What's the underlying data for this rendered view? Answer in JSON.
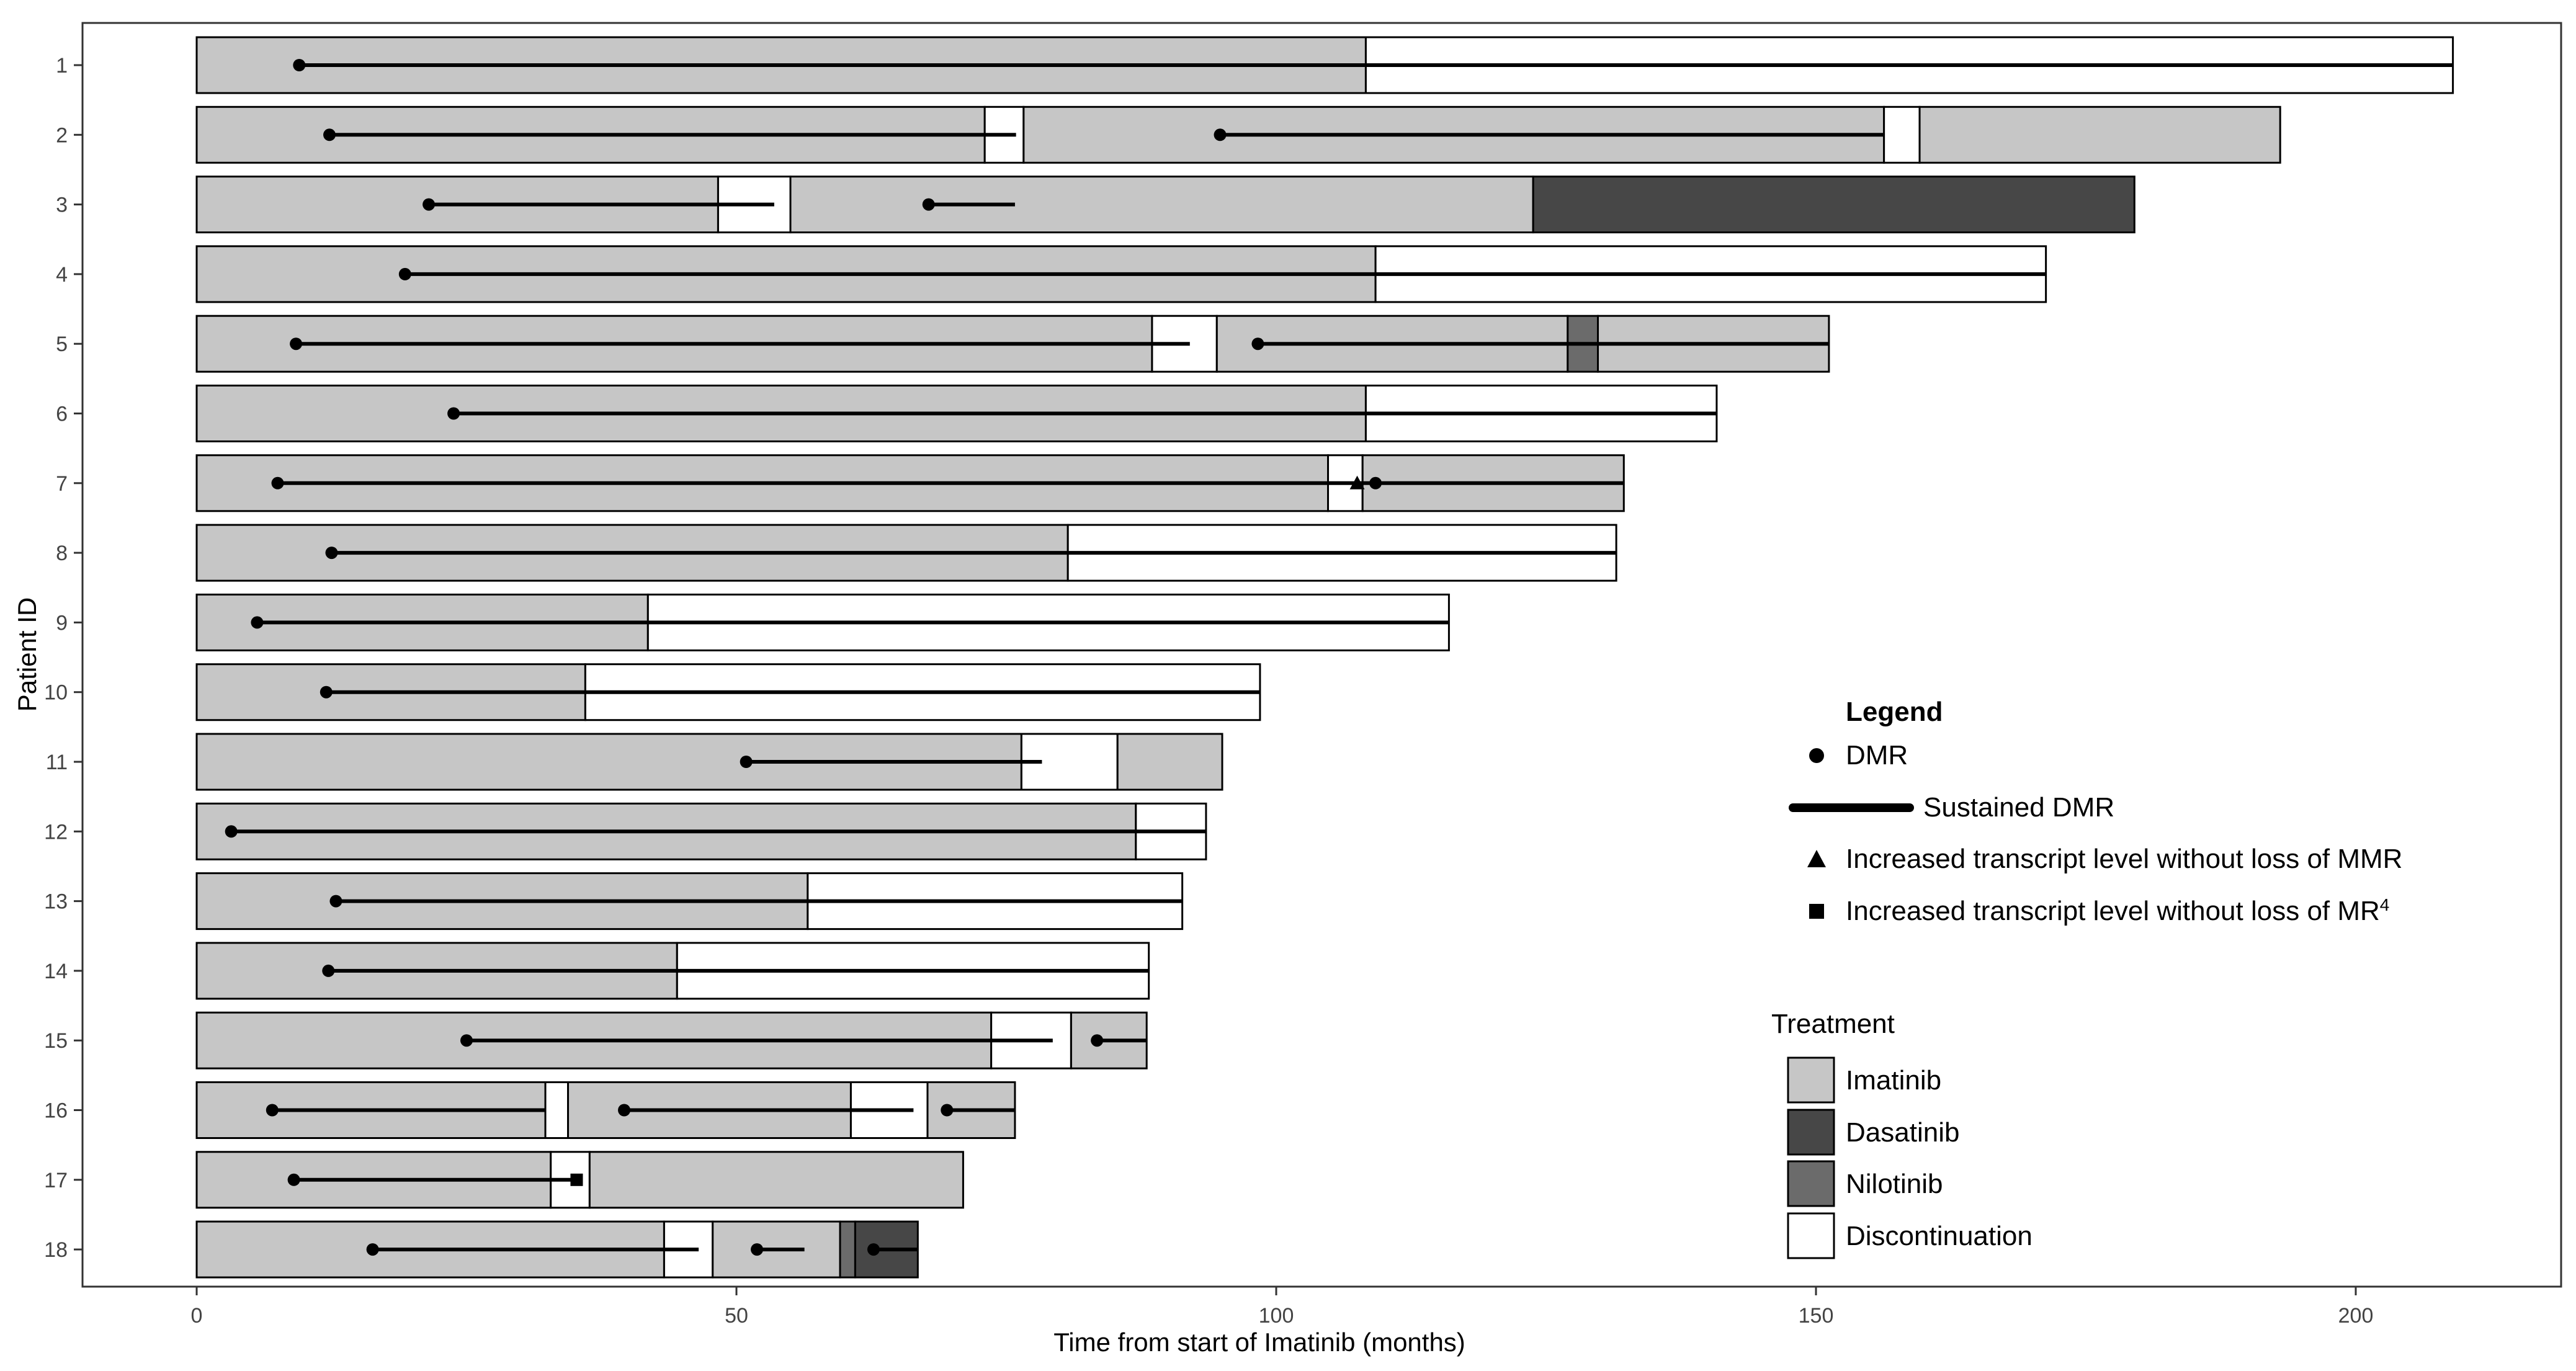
{
  "chart_data": {
    "type": "swimmer",
    "title": "",
    "xlabel": "Time from start of Imatinib (months)",
    "ylabel": "Patient ID",
    "xlim": [
      -10.5,
      218.5
    ],
    "xticks": [
      0,
      50,
      100,
      150,
      200
    ],
    "colors": {
      "Imatinib": "#c6c6c6",
      "Dasatinib": "#474747",
      "Nilotinib": "#6b6b6b",
      "Discontinuation": "#ffffff",
      "outline": "#000000",
      "text": "#000000",
      "tick_text": "#444444"
    },
    "patients": [
      {
        "id": "1",
        "segments": [
          [
            "Imatinib",
            0,
            108.3
          ],
          [
            "Discontinuation",
            108.3,
            209
          ]
        ],
        "dmr": [
          9.5
        ],
        "sustained": [
          [
            9.5,
            209
          ]
        ],
        "triangles": [],
        "squares": []
      },
      {
        "id": "2",
        "segments": [
          [
            "Imatinib",
            0,
            73
          ],
          [
            "Discontinuation",
            73,
            76.6
          ],
          [
            "Imatinib",
            76.6,
            156.3
          ],
          [
            "Discontinuation",
            156.3,
            159.6
          ],
          [
            "Imatinib",
            159.6,
            193
          ]
        ],
        "dmr": [
          12.3,
          94.8
        ],
        "sustained": [
          [
            12.3,
            75.9
          ],
          [
            94.8,
            156.3
          ]
        ],
        "triangles": [],
        "squares": []
      },
      {
        "id": "3",
        "segments": [
          [
            "Imatinib",
            0,
            48.3
          ],
          [
            "Discontinuation",
            48.3,
            55
          ],
          [
            "Imatinib",
            55,
            123.8
          ],
          [
            "Dasatinib",
            123.8,
            179.5
          ]
        ],
        "dmr": [
          21.5,
          67.8
        ],
        "sustained": [
          [
            21.5,
            53.5
          ],
          [
            67.8,
            75.8
          ]
        ],
        "triangles": [],
        "squares": []
      },
      {
        "id": "4",
        "segments": [
          [
            "Imatinib",
            0,
            109.2
          ],
          [
            "Discontinuation",
            109.2,
            171.3
          ]
        ],
        "dmr": [
          19.3
        ],
        "sustained": [
          [
            19.3,
            171.3
          ]
        ],
        "triangles": [],
        "squares": []
      },
      {
        "id": "5",
        "segments": [
          [
            "Imatinib",
            0,
            88.5
          ],
          [
            "Discontinuation",
            88.5,
            94.5
          ],
          [
            "Imatinib",
            94.5,
            127
          ],
          [
            "Nilotinib",
            127,
            129.8
          ],
          [
            "Imatinib",
            129.8,
            151.2
          ]
        ],
        "dmr": [
          9.2,
          98.3
        ],
        "sustained": [
          [
            9.2,
            92
          ],
          [
            98.3,
            151.2
          ]
        ],
        "triangles": [],
        "squares": []
      },
      {
        "id": "6",
        "segments": [
          [
            "Imatinib",
            0,
            108.3
          ],
          [
            "Discontinuation",
            108.3,
            140.8
          ]
        ],
        "dmr": [
          23.8
        ],
        "sustained": [
          [
            23.8,
            140.8
          ]
        ],
        "triangles": [],
        "squares": []
      },
      {
        "id": "7",
        "segments": [
          [
            "Imatinib",
            0,
            104.8
          ],
          [
            "Discontinuation",
            104.8,
            108
          ],
          [
            "Imatinib",
            108,
            132.2
          ]
        ],
        "dmr": [
          7.5,
          109.2
        ],
        "sustained": [
          [
            7.5,
            132.2
          ]
        ],
        "triangles": [
          107.5
        ],
        "squares": []
      },
      {
        "id": "8",
        "segments": [
          [
            "Imatinib",
            0,
            80.7
          ],
          [
            "Discontinuation",
            80.7,
            131.5
          ]
        ],
        "dmr": [
          12.5
        ],
        "sustained": [
          [
            12.5,
            131.5
          ]
        ],
        "triangles": [],
        "squares": []
      },
      {
        "id": "9",
        "segments": [
          [
            "Imatinib",
            0,
            41.8
          ],
          [
            "Discontinuation",
            41.8,
            116
          ]
        ],
        "dmr": [
          5.6
        ],
        "sustained": [
          [
            5.6,
            116
          ]
        ],
        "triangles": [],
        "squares": []
      },
      {
        "id": "10",
        "segments": [
          [
            "Imatinib",
            0,
            36
          ],
          [
            "Discontinuation",
            36,
            98.5
          ]
        ],
        "dmr": [
          12
        ],
        "sustained": [
          [
            12,
            98.5
          ]
        ],
        "triangles": [],
        "squares": []
      },
      {
        "id": "11",
        "segments": [
          [
            "Imatinib",
            0,
            76.4
          ],
          [
            "Discontinuation",
            76.4,
            85.3
          ],
          [
            "Imatinib",
            85.3,
            95
          ]
        ],
        "dmr": [
          50.9
        ],
        "sustained": [
          [
            50.9,
            78.3
          ]
        ],
        "triangles": [],
        "squares": []
      },
      {
        "id": "12",
        "segments": [
          [
            "Imatinib",
            0,
            87
          ],
          [
            "Discontinuation",
            87,
            93.5
          ]
        ],
        "dmr": [
          3.2
        ],
        "sustained": [
          [
            3.2,
            93.5
          ]
        ],
        "triangles": [],
        "squares": []
      },
      {
        "id": "13",
        "segments": [
          [
            "Imatinib",
            0,
            56.6
          ],
          [
            "Discontinuation",
            56.6,
            91.3
          ]
        ],
        "dmr": [
          12.9
        ],
        "sustained": [
          [
            12.9,
            91.3
          ]
        ],
        "triangles": [],
        "squares": []
      },
      {
        "id": "14",
        "segments": [
          [
            "Imatinib",
            0,
            44.5
          ],
          [
            "Discontinuation",
            44.5,
            88.2
          ]
        ],
        "dmr": [
          12.2
        ],
        "sustained": [
          [
            12.2,
            88.2
          ]
        ],
        "triangles": [],
        "squares": []
      },
      {
        "id": "15",
        "segments": [
          [
            "Imatinib",
            0,
            73.6
          ],
          [
            "Discontinuation",
            73.6,
            81
          ],
          [
            "Imatinib",
            81,
            88
          ]
        ],
        "dmr": [
          25,
          83.4
        ],
        "sustained": [
          [
            25,
            79.3
          ],
          [
            83.4,
            88
          ]
        ],
        "triangles": [],
        "squares": []
      },
      {
        "id": "16",
        "segments": [
          [
            "Imatinib",
            0,
            32.3
          ],
          [
            "Discontinuation",
            32.3,
            34.4
          ],
          [
            "Imatinib",
            34.4,
            60.6
          ],
          [
            "Discontinuation",
            60.6,
            67.7
          ],
          [
            "Imatinib",
            67.7,
            75.8
          ]
        ],
        "dmr": [
          7,
          39.6,
          69.5
        ],
        "sustained": [
          [
            7,
            32.3
          ],
          [
            39.6,
            66.4
          ],
          [
            69.5,
            75.8
          ]
        ],
        "triangles": [],
        "squares": []
      },
      {
        "id": "17",
        "segments": [
          [
            "Imatinib",
            0,
            32.8
          ],
          [
            "Discontinuation",
            32.8,
            36.4
          ],
          [
            "Imatinib",
            36.4,
            71
          ]
        ],
        "dmr": [
          9
        ],
        "sustained": [
          [
            9,
            35.5
          ]
        ],
        "triangles": [],
        "squares": [
          35.2
        ]
      },
      {
        "id": "18",
        "segments": [
          [
            "Imatinib",
            0,
            43.3
          ],
          [
            "Discontinuation",
            43.3,
            47.8
          ],
          [
            "Imatinib",
            47.8,
            59.6
          ],
          [
            "Nilotinib",
            59.6,
            61
          ],
          [
            "Dasatinib",
            61,
            66.8
          ]
        ],
        "dmr": [
          16.3,
          51.9,
          62.7
        ],
        "sustained": [
          [
            16.3,
            46.5
          ],
          [
            51.9,
            56.3
          ],
          [
            62.7,
            66.8
          ]
        ],
        "triangles": [],
        "squares": []
      }
    ],
    "legend": {
      "title": "Legend",
      "items": [
        {
          "symbol": "circle",
          "label": "DMR"
        },
        {
          "symbol": "line",
          "label": "Sustained DMR"
        },
        {
          "symbol": "triangle",
          "label": "Increased transcript level without loss of MMR"
        },
        {
          "symbol": "square",
          "label": "Increased transcript level without loss of MR",
          "superscript": "4"
        }
      ]
    },
    "treatment_legend": {
      "title": "Treatment",
      "items": [
        {
          "key": "Imatinib",
          "label": "Imatinib"
        },
        {
          "key": "Dasatinib",
          "label": "Dasatinib"
        },
        {
          "key": "Nilotinib",
          "label": "Nilotinib"
        },
        {
          "key": "Discontinuation",
          "label": "Discontinuation"
        }
      ]
    }
  }
}
